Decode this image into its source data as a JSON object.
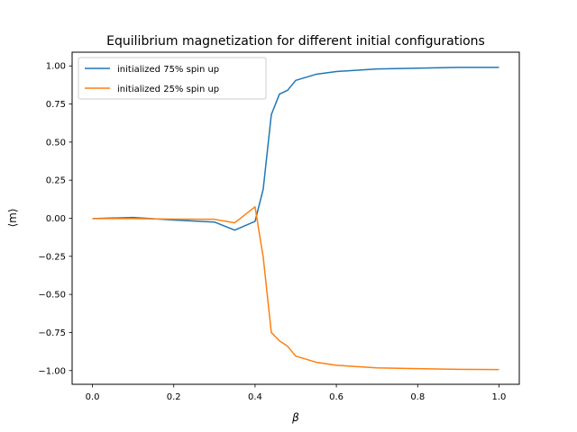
{
  "chart_data": {
    "type": "line",
    "title": "Equilibrium magnetization for different initial configurations",
    "xlabel": "β",
    "ylabel": "⟨m⟩",
    "xlim": [
      -0.05,
      1.05
    ],
    "ylim": [
      -1.09,
      1.09
    ],
    "xticks": [
      0.0,
      0.2,
      0.4,
      0.6,
      0.8,
      1.0
    ],
    "xtick_labels": [
      "0.0",
      "0.2",
      "0.4",
      "0.6",
      "0.8",
      "1.0"
    ],
    "yticks": [
      -1.0,
      -0.75,
      -0.5,
      -0.25,
      0.0,
      0.25,
      0.5,
      0.75,
      1.0
    ],
    "ytick_labels": [
      "−1.00",
      "−0.75",
      "−0.50",
      "−0.25",
      "0.00",
      "0.25",
      "0.50",
      "0.75",
      "1.00"
    ],
    "grid": false,
    "legend_position": "upper-left",
    "series": [
      {
        "name": "initialized 75% spin up",
        "color": "#1f77b4",
        "x": [
          0.0,
          0.1,
          0.2,
          0.3,
          0.35,
          0.4,
          0.42,
          0.44,
          0.46,
          0.48,
          0.5,
          0.55,
          0.6,
          0.7,
          0.8,
          0.9,
          1.0
        ],
        "y": [
          -0.002,
          0.005,
          -0.012,
          -0.025,
          -0.078,
          -0.02,
          0.19,
          0.68,
          0.815,
          0.84,
          0.905,
          0.945,
          0.963,
          0.98,
          0.985,
          0.99,
          0.99
        ]
      },
      {
        "name": "initialized 25% spin up",
        "color": "#ff7f0e",
        "x": [
          0.0,
          0.1,
          0.2,
          0.3,
          0.35,
          0.4,
          0.42,
          0.44,
          0.46,
          0.48,
          0.5,
          0.55,
          0.6,
          0.7,
          0.8,
          0.9,
          1.0
        ],
        "y": [
          -0.002,
          -0.002,
          -0.006,
          -0.007,
          -0.03,
          0.075,
          -0.255,
          -0.75,
          -0.805,
          -0.84,
          -0.905,
          -0.945,
          -0.965,
          -0.982,
          -0.987,
          -0.992,
          -0.993
        ]
      }
    ]
  }
}
